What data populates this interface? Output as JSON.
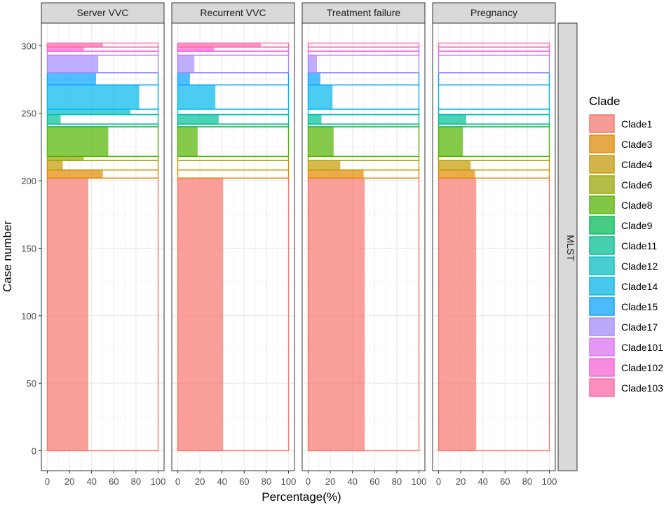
{
  "chart_data": {
    "type": "bar",
    "subtype": "faceted-mosaic",
    "xlabel": "Percentage(%)",
    "ylabel": "Case number",
    "xlim": [
      0,
      100
    ],
    "ylim": [
      0,
      302
    ],
    "x_ticks": [
      0,
      20,
      40,
      60,
      80,
      100
    ],
    "x_tick_labels": [
      "0",
      "20",
      "40",
      "60",
      "80",
      "100"
    ],
    "y_ticks": [
      0,
      50,
      100,
      150,
      200,
      250,
      300
    ],
    "y_tick_labels": [
      "0",
      "50",
      "100",
      "150",
      "200",
      "250",
      "300"
    ],
    "row_strip": "MLST",
    "facets": [
      "Server VVC",
      "Recurrent VVC",
      "Treatment failure",
      "Pregnancy"
    ],
    "legend": {
      "title": "Clade",
      "position": "right",
      "entries": [
        "Clade1",
        "Clade3",
        "Clade4",
        "Clade6",
        "Clade8",
        "Clade9",
        "Clade11",
        "Clade12",
        "Clade14",
        "Clade15",
        "Clade17",
        "Clade101",
        "Clade102",
        "Clade103"
      ]
    },
    "clades": [
      {
        "name": "Clade1",
        "color": "#F8766D",
        "ymin": 0,
        "ymax": 202
      },
      {
        "name": "Clade3",
        "color": "#E38900",
        "ymin": 202,
        "ymax": 208
      },
      {
        "name": "Clade4",
        "color": "#C49A00",
        "ymin": 208,
        "ymax": 215
      },
      {
        "name": "Clade6",
        "color": "#99A800",
        "ymin": 215,
        "ymax": 218
      },
      {
        "name": "Clade8",
        "color": "#53B400",
        "ymin": 218,
        "ymax": 240
      },
      {
        "name": "Clade9",
        "color": "#00BC56",
        "ymin": 240,
        "ymax": 242
      },
      {
        "name": "Clade11",
        "color": "#00C094",
        "ymin": 242,
        "ymax": 249
      },
      {
        "name": "Clade12",
        "color": "#00BFC4",
        "ymin": 249,
        "ymax": 253
      },
      {
        "name": "Clade14",
        "color": "#00B6EB",
        "ymin": 253,
        "ymax": 271
      },
      {
        "name": "Clade15",
        "color": "#06A4FF",
        "ymin": 271,
        "ymax": 280
      },
      {
        "name": "Clade17",
        "color": "#A58AFF",
        "ymin": 280,
        "ymax": 293
      },
      {
        "name": "Clade101",
        "color": "#DF70F8",
        "ymin": 293,
        "ymax": 296
      },
      {
        "name": "Clade102",
        "color": "#FB61D7",
        "ymin": 296,
        "ymax": 299
      },
      {
        "name": "Clade103",
        "color": "#FF66A8",
        "ymin": 299,
        "ymax": 302
      }
    ],
    "series": [
      {
        "name": "Server VVC",
        "values": [
          37,
          50,
          14,
          33,
          55,
          0,
          12,
          75,
          83,
          44,
          46,
          0,
          33,
          50
        ]
      },
      {
        "name": "Recurrent VVC",
        "values": [
          41,
          0,
          0,
          0,
          18,
          0,
          37,
          0,
          34,
          11,
          15,
          0,
          33,
          75
        ]
      },
      {
        "name": "Treatment failure",
        "values": [
          51,
          50,
          29,
          0,
          23,
          0,
          12,
          0,
          22,
          11,
          8,
          0,
          0,
          0
        ]
      },
      {
        "name": "Pregnancy",
        "values": [
          34,
          33,
          29,
          0,
          22,
          0,
          25,
          0,
          0,
          0,
          0,
          0,
          0,
          0
        ]
      }
    ]
  }
}
